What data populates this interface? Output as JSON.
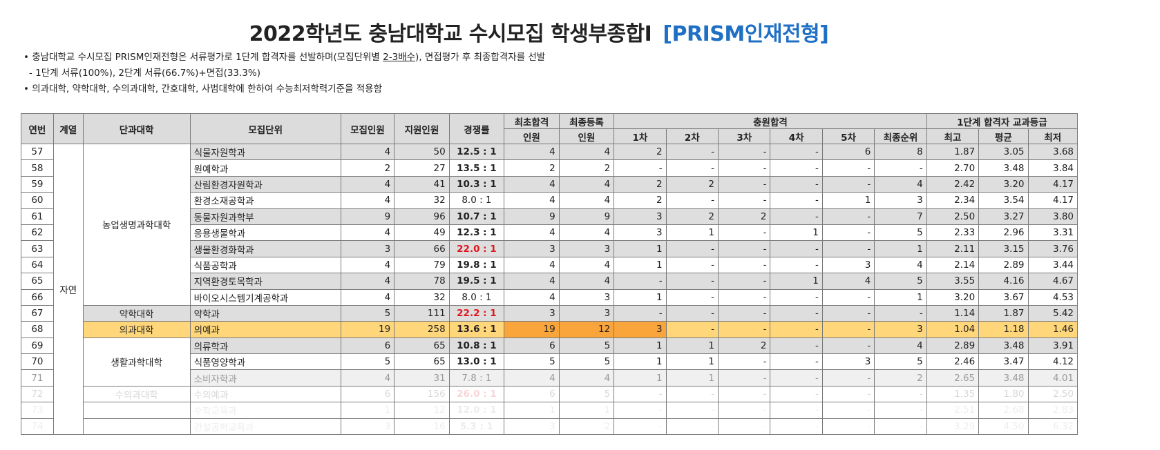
{
  "title": "2022학년도 충남대학교 수시모집 학생부종합Ⅰ",
  "subtitle": "[PRISM인재전형]",
  "notes": {
    "line1_pre": "• 충남대학교 수시모집 PRISM인재전형은 서류평가로 1단계 합격자를 선발하며(모집단위별 ",
    "line1_u": "2-3배수",
    "line1_post": "), 면접평가 후 최종합격자를 선발",
    "line2": "- 1단계 서류(100%), 2단계 서류(66.7%)+면접(33.3%)",
    "line3": "• 의과대학, 약학대학, 수의과대학, 간호대학, 사범대학에 한하여 수능최저학력기준을 적용함"
  },
  "headers": {
    "no": "연번",
    "field": "계열",
    "college": "단과대학",
    "unit": "모집단위",
    "quota": "모집인원",
    "applicants": "지원인원",
    "ratio": "경쟁률",
    "first_pass": "최초합격",
    "first_pass2": "인원",
    "final_reg": "최종등록",
    "final_reg2": "인원",
    "addl": "충원합격",
    "addl_sub": [
      "1차",
      "2차",
      "3차",
      "4차",
      "5차",
      "최종순위"
    ],
    "grade": "1단계 합격자 교과등급",
    "grade_sub": [
      "최고",
      "평균",
      "최저"
    ]
  },
  "field_label": "자연",
  "colleges": {
    "agri": "농업생명과학대학",
    "pharm": "약학대학",
    "med": "의과대학",
    "life": "생활과학대학",
    "vet": "수의과대학"
  },
  "rows": [
    {
      "no": "57",
      "unit": "식물자원학과",
      "q": "4",
      "a": "50",
      "ratio": "12.5 : 1",
      "fp": "4",
      "fr": "4",
      "s1": "2",
      "s2": "-",
      "s3": "-",
      "s4": "-",
      "s5": "6",
      "last": "8",
      "g1": "1.87",
      "g2": "3.05",
      "g3": "3.68"
    },
    {
      "no": "58",
      "unit": "원예학과",
      "q": "2",
      "a": "27",
      "ratio": "13.5 : 1",
      "fp": "2",
      "fr": "2",
      "s1": "-",
      "s2": "-",
      "s3": "-",
      "s4": "-",
      "s5": "-",
      "last": "-",
      "g1": "2.70",
      "g2": "3.48",
      "g3": "3.84"
    },
    {
      "no": "59",
      "unit": "산림환경자원학과",
      "q": "4",
      "a": "41",
      "ratio": "10.3 : 1",
      "fp": "4",
      "fr": "4",
      "s1": "2",
      "s2": "2",
      "s3": "-",
      "s4": "-",
      "s5": "-",
      "last": "4",
      "g1": "2.42",
      "g2": "3.20",
      "g3": "4.17"
    },
    {
      "no": "60",
      "unit": "환경소재공학과",
      "q": "4",
      "a": "32",
      "ratio": "8.0 : 1",
      "fp": "4",
      "fr": "4",
      "s1": "2",
      "s2": "-",
      "s3": "-",
      "s4": "-",
      "s5": "1",
      "last": "3",
      "g1": "2.34",
      "g2": "3.54",
      "g3": "4.17"
    },
    {
      "no": "61",
      "unit": "동물자원과학부",
      "q": "9",
      "a": "96",
      "ratio": "10.7 : 1",
      "fp": "9",
      "fr": "9",
      "s1": "3",
      "s2": "2",
      "s3": "2",
      "s4": "-",
      "s5": "-",
      "last": "7",
      "g1": "2.50",
      "g2": "3.27",
      "g3": "3.80"
    },
    {
      "no": "62",
      "unit": "응용생물학과",
      "q": "4",
      "a": "49",
      "ratio": "12.3 : 1",
      "fp": "4",
      "fr": "4",
      "s1": "3",
      "s2": "1",
      "s3": "-",
      "s4": "1",
      "s5": "-",
      "last": "5",
      "g1": "2.33",
      "g2": "2.96",
      "g3": "3.31"
    },
    {
      "no": "63",
      "unit": "생물환경화학과",
      "q": "3",
      "a": "66",
      "ratio": "22.0 : 1",
      "fp": "3",
      "fr": "3",
      "s1": "1",
      "s2": "-",
      "s3": "-",
      "s4": "-",
      "s5": "-",
      "last": "1",
      "g1": "2.11",
      "g2": "3.15",
      "g3": "3.76"
    },
    {
      "no": "64",
      "unit": "식품공학과",
      "q": "4",
      "a": "79",
      "ratio": "19.8 : 1",
      "fp": "4",
      "fr": "4",
      "s1": "1",
      "s2": "-",
      "s3": "-",
      "s4": "-",
      "s5": "3",
      "last": "4",
      "g1": "2.14",
      "g2": "2.89",
      "g3": "3.44"
    },
    {
      "no": "65",
      "unit": "지역환경토목학과",
      "q": "4",
      "a": "78",
      "ratio": "19.5 : 1",
      "fp": "4",
      "fr": "4",
      "s1": "-",
      "s2": "-",
      "s3": "-",
      "s4": "1",
      "s5": "4",
      "last": "5",
      "g1": "3.55",
      "g2": "4.16",
      "g3": "4.67"
    },
    {
      "no": "66",
      "unit": "바이오시스템기계공학과",
      "q": "4",
      "a": "32",
      "ratio": "8.0 : 1",
      "fp": "4",
      "fr": "3",
      "s1": "1",
      "s2": "-",
      "s3": "-",
      "s4": "-",
      "s5": "-",
      "last": "1",
      "g1": "3.20",
      "g2": "3.67",
      "g3": "4.53"
    },
    {
      "no": "67",
      "unit": "약학과",
      "q": "5",
      "a": "111",
      "ratio": "22.2 : 1",
      "fp": "3",
      "fr": "3",
      "s1": "-",
      "s2": "-",
      "s3": "-",
      "s4": "-",
      "s5": "-",
      "last": "-",
      "g1": "1.14",
      "g2": "1.87",
      "g3": "5.42"
    },
    {
      "no": "68",
      "unit": "의예과",
      "q": "19",
      "a": "258",
      "ratio": "13.6 : 1",
      "fp": "19",
      "fr": "12",
      "s1": "3",
      "s2": "-",
      "s3": "-",
      "s4": "-",
      "s5": "-",
      "last": "3",
      "g1": "1.04",
      "g2": "1.18",
      "g3": "1.46"
    },
    {
      "no": "69",
      "unit": "의류학과",
      "q": "6",
      "a": "65",
      "ratio": "10.8 : 1",
      "fp": "6",
      "fr": "5",
      "s1": "1",
      "s2": "1",
      "s3": "2",
      "s4": "-",
      "s5": "-",
      "last": "4",
      "g1": "2.89",
      "g2": "3.48",
      "g3": "3.91"
    },
    {
      "no": "70",
      "unit": "식품영양학과",
      "q": "5",
      "a": "65",
      "ratio": "13.0 : 1",
      "fp": "5",
      "fr": "5",
      "s1": "1",
      "s2": "1",
      "s3": "-",
      "s4": "-",
      "s5": "3",
      "last": "5",
      "g1": "2.46",
      "g2": "3.47",
      "g3": "4.12"
    },
    {
      "no": "71",
      "unit": "소비자학과",
      "q": "4",
      "a": "31",
      "ratio": "7.8 : 1",
      "fp": "4",
      "fr": "4",
      "s1": "1",
      "s2": "1",
      "s3": "-",
      "s4": "-",
      "s5": "-",
      "last": "2",
      "g1": "2.65",
      "g2": "3.48",
      "g3": "4.01"
    },
    {
      "no": "72",
      "unit": "수의예과",
      "q": "6",
      "a": "156",
      "ratio": "26.0 : 1",
      "fp": "6",
      "fr": "5",
      "s1": "-",
      "s2": "-",
      "s3": "-",
      "s4": "-",
      "s5": "-",
      "last": "-",
      "g1": "1.35",
      "g2": "1.80",
      "g3": "2.50"
    },
    {
      "no": "73",
      "unit": "수학교육과",
      "q": "1",
      "a": "12",
      "ratio": "12.0 : 1",
      "fp": "1",
      "fr": "1",
      "s1": "-",
      "s2": "-",
      "s3": "-",
      "s4": "-",
      "s5": "-",
      "last": "-",
      "g1": "2.51",
      "g2": "2.68",
      "g3": "2.83"
    },
    {
      "no": "74",
      "unit": "건설공학교육과",
      "q": "3",
      "a": "16",
      "ratio": "5.3 : 1",
      "fp": "3",
      "fr": "2",
      "s1": "-",
      "s2": "-",
      "s3": "-",
      "s4": "-",
      "s5": "-",
      "last": "-",
      "g1": "3.29",
      "g2": "4.50",
      "g3": "6.32"
    }
  ]
}
